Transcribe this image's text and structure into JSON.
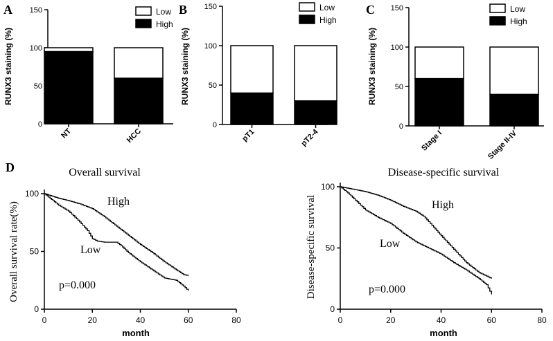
{
  "chart_data": [
    {
      "id": "A",
      "type": "bar",
      "stacked": true,
      "panel_label": "A",
      "categories": [
        "NT",
        "HCC"
      ],
      "series": [
        {
          "name": "High",
          "color": "#000000",
          "values": [
            95,
            60
          ]
        },
        {
          "name": "Low",
          "color": "#ffffff",
          "values": [
            5,
            40
          ]
        }
      ],
      "ylabel": "RUNX3 staining (%)",
      "ylim": [
        0,
        150
      ],
      "yticks": [
        "0",
        "50",
        "100",
        "150"
      ],
      "legend": [
        "Low",
        "High"
      ],
      "legend_position": "top-right"
    },
    {
      "id": "B",
      "type": "bar",
      "stacked": true,
      "panel_label": "B",
      "categories": [
        "pT1",
        "pT2-4"
      ],
      "series": [
        {
          "name": "High",
          "color": "#000000",
          "values": [
            40,
            30
          ]
        },
        {
          "name": "Low",
          "color": "#ffffff",
          "values": [
            60,
            70
          ]
        }
      ],
      "ylabel": "RUNX3 staining (%)",
      "ylim": [
        0,
        150
      ],
      "yticks": [
        "0",
        "50",
        "100",
        "150"
      ],
      "legend": [
        "Low",
        "High"
      ],
      "legend_position": "top-right"
    },
    {
      "id": "C",
      "type": "bar",
      "stacked": true,
      "panel_label": "C",
      "categories": [
        "Stage I",
        "Stage II-IV"
      ],
      "series": [
        {
          "name": "High",
          "color": "#000000",
          "values": [
            60,
            40
          ]
        },
        {
          "name": "Low",
          "color": "#ffffff",
          "values": [
            40,
            60
          ]
        }
      ],
      "ylabel": "RUNX3 staining (%)",
      "ylim": [
        0,
        150
      ],
      "yticks": [
        "0",
        "50",
        "100",
        "150"
      ],
      "legend": [
        "Low",
        "High"
      ],
      "legend_position": "top-right"
    },
    {
      "id": "D1",
      "type": "line",
      "step": true,
      "panel_label": "D",
      "title": "Overall survival",
      "xlabel": "month",
      "ylabel": "Overall survival rate(%)",
      "xlim": [
        0,
        80
      ],
      "ylim": [
        0,
        100
      ],
      "xticks": [
        "0",
        "20",
        "40",
        "60",
        "80"
      ],
      "yticks": [
        "0",
        "50",
        "100"
      ],
      "annotation": "p=0.000",
      "series": [
        {
          "name": "High",
          "label": "High",
          "x": [
            0,
            3,
            6,
            10,
            15,
            20,
            25,
            30,
            35,
            40,
            45,
            50,
            55,
            58,
            60
          ],
          "y": [
            100,
            98,
            96,
            94,
            91,
            87,
            80,
            72,
            64,
            56,
            49,
            41,
            34,
            30,
            29
          ]
        },
        {
          "name": "Low",
          "label": "Low",
          "x": [
            0,
            3,
            6,
            10,
            14,
            18,
            20,
            22,
            25,
            30,
            32,
            35,
            40,
            45,
            50,
            55,
            58,
            60
          ],
          "y": [
            100,
            95,
            90,
            85,
            77,
            68,
            61,
            59,
            58,
            58,
            55,
            49,
            41,
            34,
            27,
            25,
            20,
            16
          ]
        }
      ]
    },
    {
      "id": "D2",
      "type": "line",
      "step": true,
      "title": "Disease-specific survival",
      "xlabel": "month",
      "ylabel": "Disease-specific survival",
      "xlim": [
        0,
        80
      ],
      "ylim": [
        0,
        100
      ],
      "xticks": [
        "0",
        "20",
        "40",
        "60",
        "80"
      ],
      "yticks": [
        "0",
        "50",
        "100"
      ],
      "annotation": "p=0.000",
      "series": [
        {
          "name": "High",
          "label": "High",
          "x": [
            0,
            5,
            10,
            15,
            20,
            25,
            30,
            33,
            37,
            40,
            45,
            50,
            55,
            58,
            60
          ],
          "y": [
            100,
            98,
            96,
            93,
            89,
            84,
            80,
            76,
            67,
            60,
            49,
            38,
            30,
            27,
            25
          ]
        },
        {
          "name": "Low",
          "label": "Low",
          "x": [
            0,
            3,
            6,
            10,
            15,
            20,
            25,
            30,
            35,
            40,
            45,
            50,
            55,
            58,
            60
          ],
          "y": [
            100,
            95,
            89,
            81,
            75,
            70,
            62,
            55,
            50,
            45,
            38,
            32,
            25,
            20,
            12
          ]
        }
      ]
    }
  ]
}
